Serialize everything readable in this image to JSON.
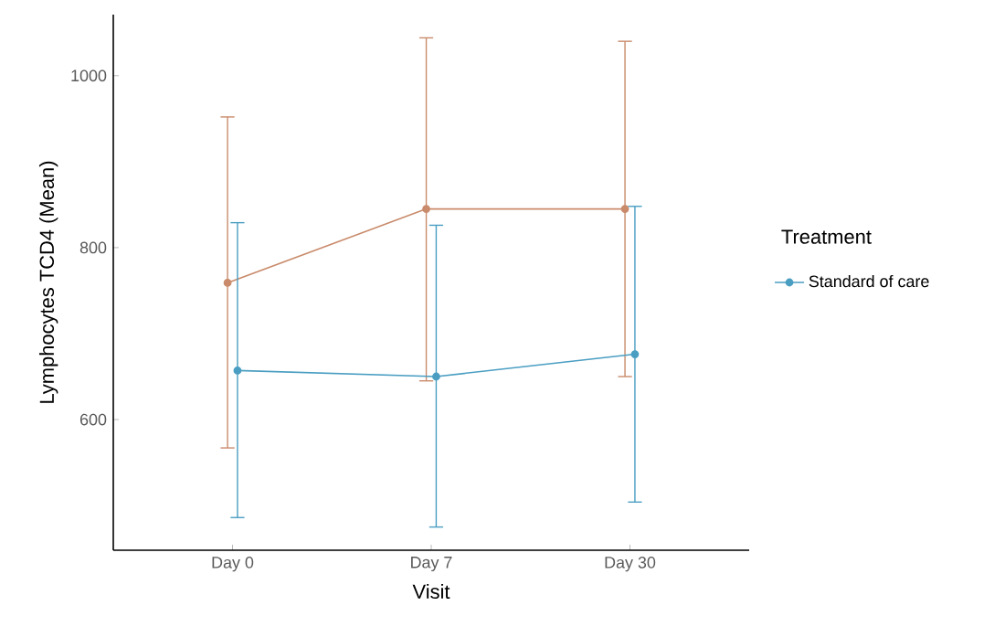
{
  "chart_data": {
    "type": "line",
    "xlabel": "Visit",
    "ylabel": "Lymphocytes TCD4 (Mean)",
    "legend_title": "Treatment",
    "categories": [
      "Day 0",
      "Day 7",
      "Day 30"
    ],
    "series": [
      {
        "color": "#c98b6b",
        "values": [
          759,
          845,
          845
        ],
        "errors": [
          [
            567,
            952
          ],
          [
            645,
            1044
          ],
          [
            650,
            1040
          ]
        ]
      },
      {
        "name": "Standard of care",
        "color": "#4a9ec2",
        "values": [
          657,
          650,
          676
        ],
        "errors": [
          [
            486,
            829
          ],
          [
            475,
            826
          ],
          [
            504,
            848
          ]
        ]
      }
    ],
    "ylim": [
      448,
      1071
    ],
    "yticks": [
      600,
      800,
      1000
    ],
    "grid": false,
    "legend": "right",
    "marker": "circle",
    "line_style": "solid"
  }
}
